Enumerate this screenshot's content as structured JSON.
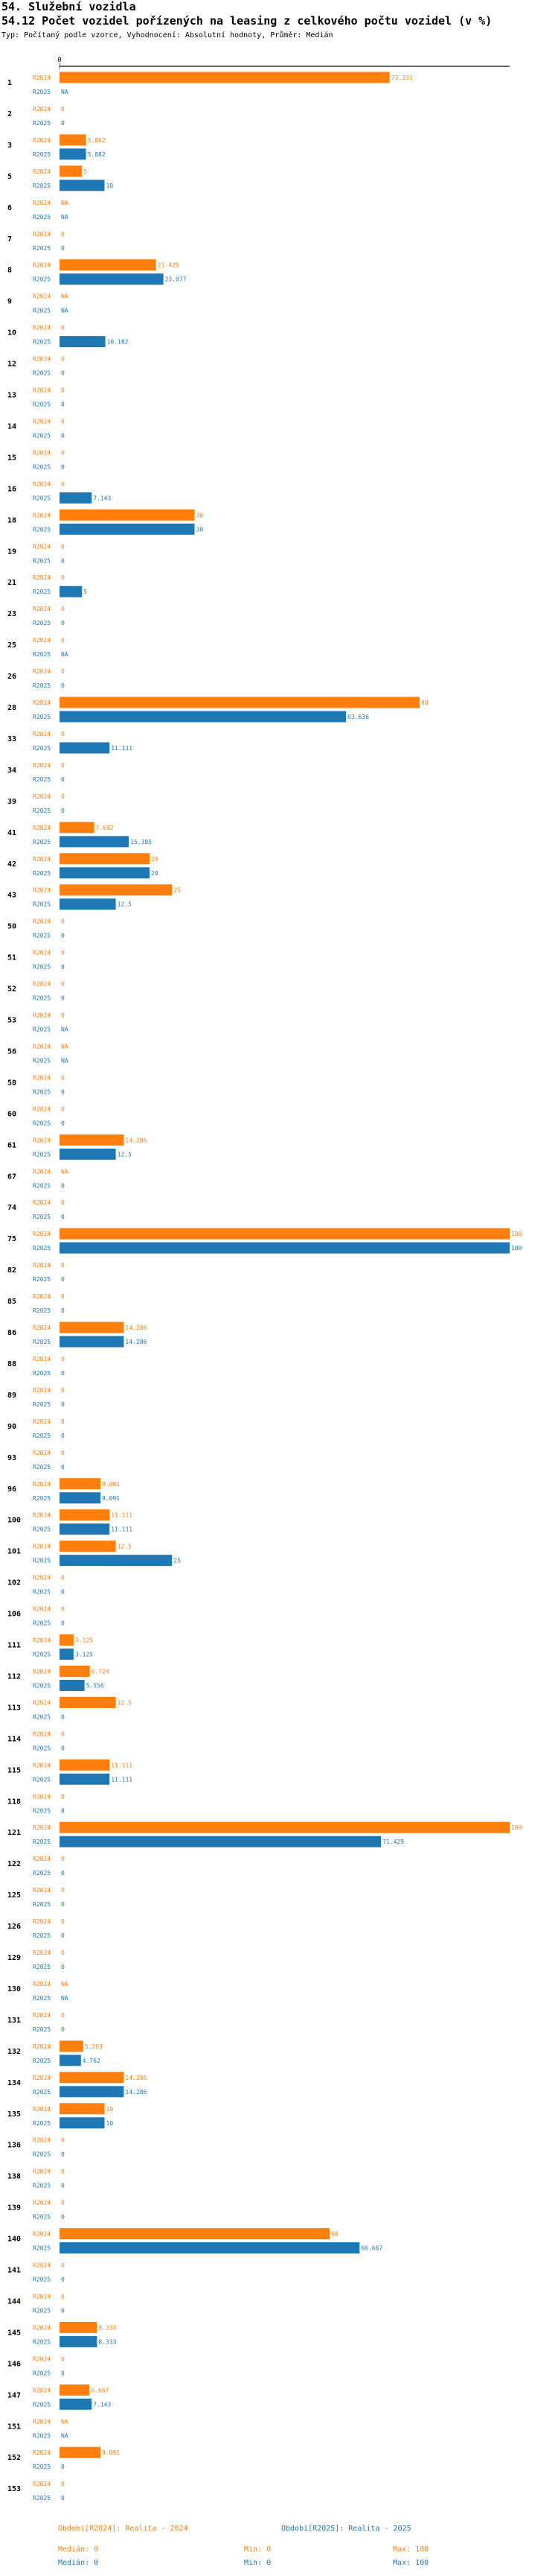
{
  "section_title": "54. Služební vozidla",
  "chart_title": "54.12 Počet vozidel pořízených na leasing z celkového počtu vozidel (v %)",
  "chart_subtitle": "Typ: Počítaný podle vzorce, Vyhodnocení: Absolutní hodnoty, Průměr: Medián",
  "colors": {
    "r2024": "#ff7f0e",
    "r2025": "#1f77b4",
    "axis": "#666666"
  },
  "chart_data": {
    "type": "bar",
    "orientation": "horizontal",
    "xlim": [
      0,
      100
    ],
    "axis_tick_label": "0",
    "series": [
      {
        "name": "R2024",
        "key": "r2024"
      },
      {
        "name": "R2025",
        "key": "r2025"
      }
    ],
    "categories": [
      {
        "id": "1",
        "r2024": 73.333,
        "r2025": "NA"
      },
      {
        "id": "2",
        "r2024": 0,
        "r2025": 0
      },
      {
        "id": "3",
        "r2024": 5.882,
        "r2025": 5.882
      },
      {
        "id": "5",
        "r2024": 5,
        "r2025": 10
      },
      {
        "id": "6",
        "r2024": "NA",
        "r2025": "NA"
      },
      {
        "id": "7",
        "r2024": 0,
        "r2025": 0
      },
      {
        "id": "8",
        "r2024": 21.429,
        "r2025": 23.077
      },
      {
        "id": "9",
        "r2024": "NA",
        "r2025": "NA"
      },
      {
        "id": "10",
        "r2024": 0,
        "r2025": 10.182
      },
      {
        "id": "12",
        "r2024": 0,
        "r2025": 0
      },
      {
        "id": "13",
        "r2024": 0,
        "r2025": 0
      },
      {
        "id": "14",
        "r2024": 0,
        "r2025": 0
      },
      {
        "id": "15",
        "r2024": 0,
        "r2025": 0
      },
      {
        "id": "16",
        "r2024": 0,
        "r2025": 7.143
      },
      {
        "id": "18",
        "r2024": 30,
        "r2025": 30
      },
      {
        "id": "19",
        "r2024": 0,
        "r2025": 0
      },
      {
        "id": "21",
        "r2024": 0,
        "r2025": 5
      },
      {
        "id": "23",
        "r2024": 0,
        "r2025": 0
      },
      {
        "id": "25",
        "r2024": 0,
        "r2025": "NA"
      },
      {
        "id": "26",
        "r2024": 0,
        "r2025": 0
      },
      {
        "id": "28",
        "r2024": 80,
        "r2025": 63.636
      },
      {
        "id": "33",
        "r2024": 0,
        "r2025": 11.111
      },
      {
        "id": "34",
        "r2024": 0,
        "r2025": 0
      },
      {
        "id": "39",
        "r2024": 0,
        "r2025": 0
      },
      {
        "id": "41",
        "r2024": 7.692,
        "r2025": 15.385
      },
      {
        "id": "42",
        "r2024": 20,
        "r2025": 20
      },
      {
        "id": "43",
        "r2024": 25,
        "r2025": 12.5
      },
      {
        "id": "50",
        "r2024": 0,
        "r2025": 0
      },
      {
        "id": "51",
        "r2024": 0,
        "r2025": 0
      },
      {
        "id": "52",
        "r2024": 0,
        "r2025": 0
      },
      {
        "id": "53",
        "r2024": 0,
        "r2025": "NA"
      },
      {
        "id": "56",
        "r2024": "NA",
        "r2025": "NA"
      },
      {
        "id": "58",
        "r2024": 0,
        "r2025": 0
      },
      {
        "id": "60",
        "r2024": 0,
        "r2025": 0
      },
      {
        "id": "61",
        "r2024": 14.286,
        "r2025": 12.5
      },
      {
        "id": "67",
        "r2024": "NA",
        "r2025": 0
      },
      {
        "id": "74",
        "r2024": 0,
        "r2025": 0
      },
      {
        "id": "75",
        "r2024": 100,
        "r2025": 100
      },
      {
        "id": "82",
        "r2024": 0,
        "r2025": 0
      },
      {
        "id": "85",
        "r2024": 0,
        "r2025": 0
      },
      {
        "id": "86",
        "r2024": 14.286,
        "r2025": 14.286
      },
      {
        "id": "88",
        "r2024": 0,
        "r2025": 0
      },
      {
        "id": "89",
        "r2024": 0,
        "r2025": 0
      },
      {
        "id": "90",
        "r2024": 0,
        "r2025": 0
      },
      {
        "id": "93",
        "r2024": 0,
        "r2025": 0
      },
      {
        "id": "96",
        "r2024": 9.091,
        "r2025": 9.091
      },
      {
        "id": "100",
        "r2024": 11.111,
        "r2025": 11.111
      },
      {
        "id": "101",
        "r2024": 12.5,
        "r2025": 25
      },
      {
        "id": "102",
        "r2024": 0,
        "r2025": 0
      },
      {
        "id": "106",
        "r2024": 0,
        "r2025": 0
      },
      {
        "id": "111",
        "r2024": 3.125,
        "r2025": 3.125
      },
      {
        "id": "112",
        "r2024": 6.724,
        "r2025": 5.556
      },
      {
        "id": "113",
        "r2024": 12.5,
        "r2025": 0
      },
      {
        "id": "114",
        "r2024": 0,
        "r2025": 0
      },
      {
        "id": "115",
        "r2024": 11.111,
        "r2025": 11.111
      },
      {
        "id": "118",
        "r2024": 0,
        "r2025": 0
      },
      {
        "id": "121",
        "r2024": 100,
        "r2025": 71.429
      },
      {
        "id": "122",
        "r2024": 0,
        "r2025": 0
      },
      {
        "id": "125",
        "r2024": 0,
        "r2025": 0
      },
      {
        "id": "126",
        "r2024": 0,
        "r2025": 0
      },
      {
        "id": "129",
        "r2024": 0,
        "r2025": 0
      },
      {
        "id": "130",
        "r2024": "NA",
        "r2025": "NA"
      },
      {
        "id": "131",
        "r2024": 0,
        "r2025": 0
      },
      {
        "id": "132",
        "r2024": 5.263,
        "r2025": 4.762
      },
      {
        "id": "134",
        "r2024": 14.286,
        "r2025": 14.286
      },
      {
        "id": "135",
        "r2024": 10,
        "r2025": 10
      },
      {
        "id": "136",
        "r2024": 0,
        "r2025": 0
      },
      {
        "id": "138",
        "r2024": 0,
        "r2025": 0
      },
      {
        "id": "139",
        "r2024": 0,
        "r2025": 0
      },
      {
        "id": "140",
        "r2024": 60,
        "r2025": 66.667
      },
      {
        "id": "141",
        "r2024": 0,
        "r2025": 0
      },
      {
        "id": "144",
        "r2024": 0,
        "r2025": 0
      },
      {
        "id": "145",
        "r2024": 8.333,
        "r2025": 8.333
      },
      {
        "id": "146",
        "r2024": 0,
        "r2025": 0
      },
      {
        "id": "147",
        "r2024": 6.667,
        "r2025": 7.143
      },
      {
        "id": "151",
        "r2024": "NA",
        "r2025": "NA"
      },
      {
        "id": "152",
        "r2024": 9.091,
        "r2025": 0
      },
      {
        "id": "153",
        "r2024": 0,
        "r2025": 0
      }
    ]
  },
  "footer": {
    "r2024_period": "Období[R2024]: Realita - 2024",
    "r2025_period": "Období[R2025]: Realita - 2025",
    "r2024_median": "Medián: 0",
    "r2024_min": "Min: 0",
    "r2024_max": "Max: 100",
    "r2025_median": "Medián: 0",
    "r2025_min": "Min: 0",
    "r2025_max": "Max: 100"
  }
}
